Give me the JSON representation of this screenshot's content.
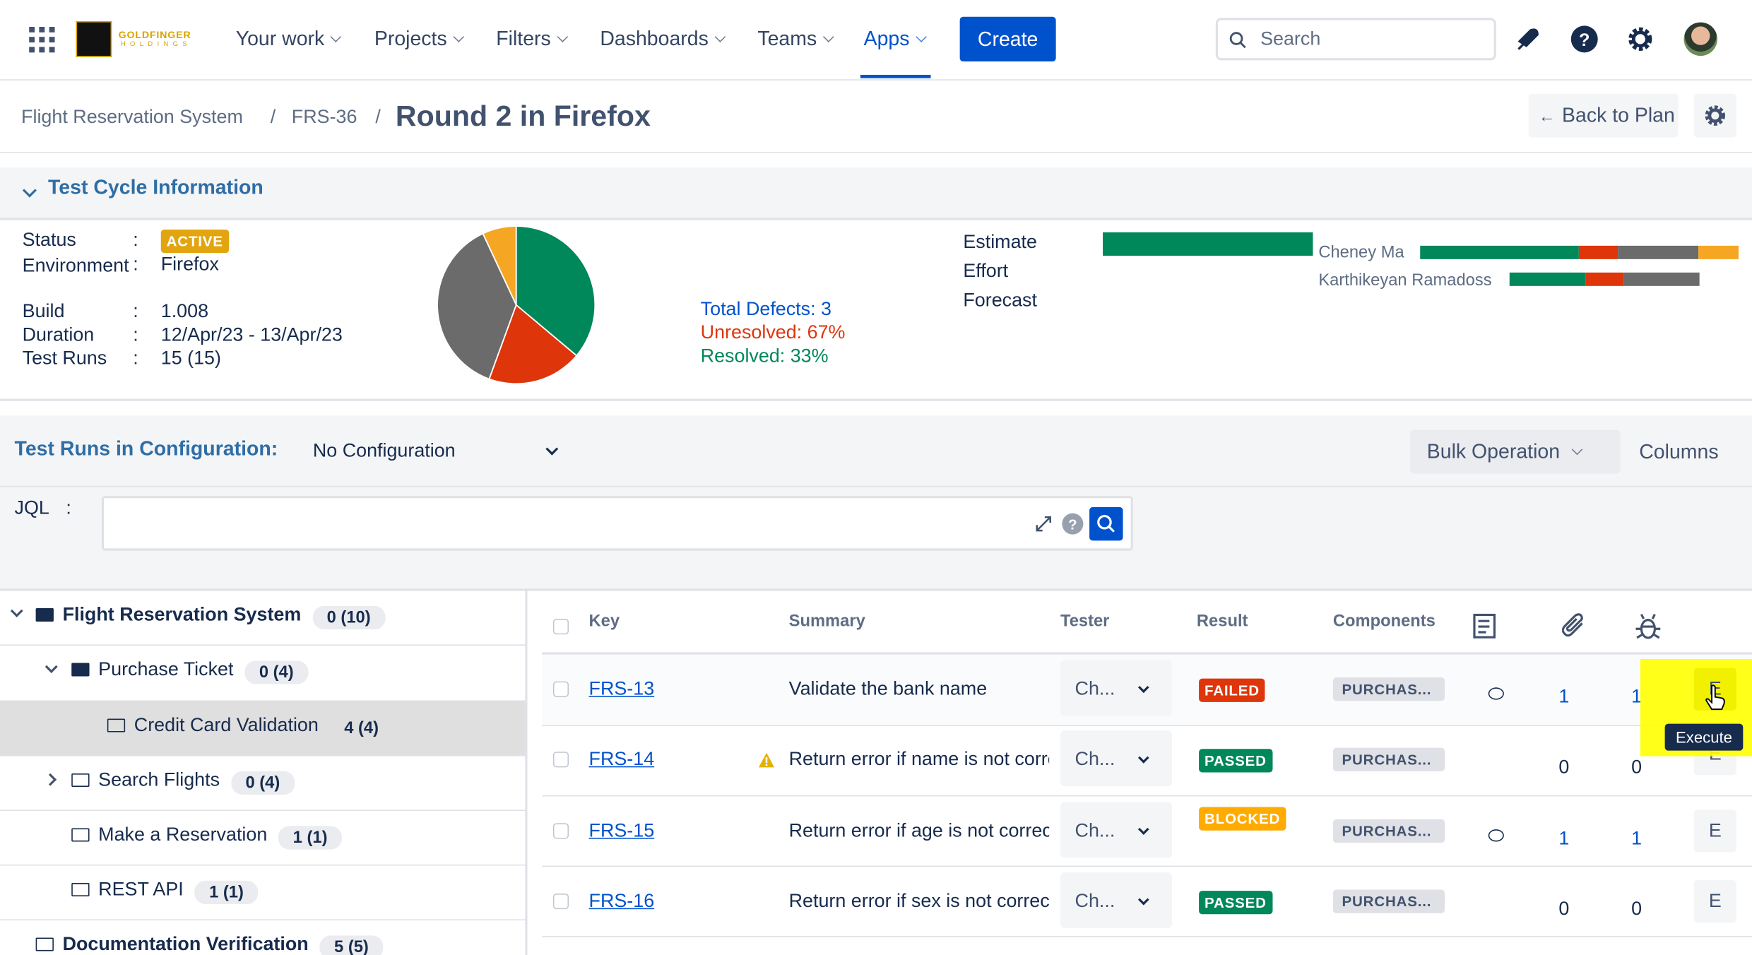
{
  "nav": {
    "logo": {
      "line1": "GOLDFINGER",
      "line2": "HOLDINGS"
    },
    "items": [
      "Your work",
      "Projects",
      "Filters",
      "Dashboards",
      "Teams",
      "Apps"
    ],
    "create": "Create",
    "search": "Search"
  },
  "header": {
    "breadcrumb": [
      "Flight Reservation System",
      "FRS-36"
    ],
    "separator": "/",
    "title": "Round 2 in Firefox",
    "back": "Back to Plan"
  },
  "cycle_info": {
    "title": "Test Cycle Information",
    "separator": ":",
    "fields": [
      {
        "label": "Status",
        "value": "ACTIVE"
      },
      {
        "label": "Environment",
        "value": "Firefox"
      },
      {
        "label": "Build",
        "value": "1.008"
      },
      {
        "label": "Duration",
        "value": "12/Apr/23 - 13/Apr/23"
      },
      {
        "label": "Test Runs",
        "value": "15 (15)"
      }
    ],
    "defects": [
      "Total Defects: 3",
      "Unresolved: 67%",
      "Resolved: 33%"
    ],
    "progress_labels": [
      "Estimate",
      "Effort",
      "Forecast"
    ],
    "testers": [
      "Cheney Ma",
      "Karthikeyan Ramadoss"
    ]
  },
  "config": {
    "label": "Test Runs in Configuration:",
    "selected": "No Configuration",
    "bulk": "Bulk Operation",
    "columns": "Columns",
    "jql_label": "JQL",
    "jql_separator": ":"
  },
  "tree": {
    "nodes": [
      {
        "label": "Flight Reservation System",
        "count": "0 (10)"
      },
      {
        "label": "Purchase Ticket",
        "count": "0 (4)"
      },
      {
        "label": "Credit Card Validation",
        "count": "4 (4)"
      },
      {
        "label": "Search Flights",
        "count": "0 (4)"
      },
      {
        "label": "Make a Reservation",
        "count": "1 (1)"
      },
      {
        "label": "REST API",
        "count": "1 (1)"
      },
      {
        "label": "Documentation Verification",
        "count": "5 (5)"
      }
    ]
  },
  "table": {
    "headers": [
      "Key",
      "Summary",
      "Tester",
      "Result",
      "Components"
    ],
    "rows": [
      [
        "FRS-13",
        "Validate the bank name",
        "Ch...",
        "FAILED",
        "PURCHAS...",
        "1",
        "1",
        "E"
      ],
      [
        "FRS-14",
        "Return error if name is not correct",
        "Ch...",
        "PASSED",
        "PURCHAS...",
        "0",
        "0",
        "E"
      ],
      [
        "FRS-15",
        "Return error if age is not correct",
        "Ch...",
        "BLOCKED",
        "PURCHAS...",
        "1",
        "1",
        "E"
      ],
      [
        "FRS-16",
        "Return error if sex is not correct",
        "Ch...",
        "PASSED",
        "PURCHAS...",
        "0",
        "0",
        "E"
      ]
    ],
    "tooltip": "Execute"
  }
}
